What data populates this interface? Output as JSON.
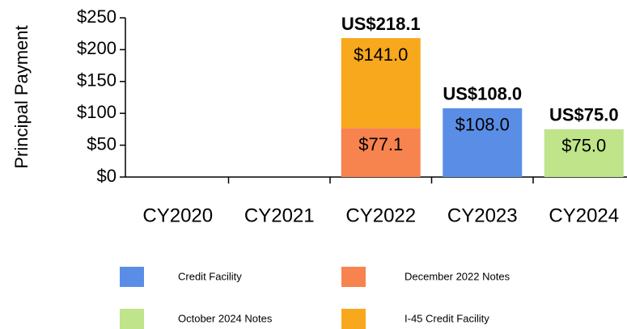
{
  "chart_data": {
    "type": "stacked_bar",
    "y_label": "Principal Payment",
    "categories": [
      "CY2020",
      "CY2021",
      "CY2022",
      "CY2023",
      "CY2024"
    ],
    "series": [
      {
        "name": "Credit Facility",
        "color": "#5a8ee6",
        "values": [
          null,
          null,
          null,
          108.0,
          null
        ],
        "value_labels": [
          null,
          null,
          null,
          "$108.0",
          null
        ]
      },
      {
        "name": "December 2022 Notes",
        "color": "#f7834f",
        "values": [
          null,
          null,
          77.1,
          null,
          null
        ],
        "value_labels": [
          null,
          null,
          "$77.1",
          null,
          null
        ]
      },
      {
        "name": "October 2024 Notes",
        "color": "#bfe48a",
        "values": [
          null,
          null,
          null,
          null,
          75.0
        ],
        "value_labels": [
          null,
          null,
          null,
          null,
          "$75.0"
        ]
      },
      {
        "name": "I-45 Credit Facility",
        "color": "#f8a81c",
        "values": [
          null,
          null,
          141.0,
          null,
          null
        ],
        "value_labels": [
          null,
          null,
          "$141.0",
          null,
          null
        ]
      }
    ],
    "totals": [
      null,
      null,
      218.1,
      108.0,
      75.0
    ],
    "total_labels": [
      null,
      null,
      "US$218.1",
      "US$108.0",
      "US$75.0"
    ],
    "ylim": [
      0,
      250
    ],
    "yticks": [
      {
        "value": 0,
        "label": "$0"
      },
      {
        "value": 50,
        "label": "$50"
      },
      {
        "value": 100,
        "label": "$100"
      },
      {
        "value": 150,
        "label": "$150"
      },
      {
        "value": 200,
        "label": "$200"
      },
      {
        "value": 250,
        "label": "$250"
      }
    ]
  }
}
